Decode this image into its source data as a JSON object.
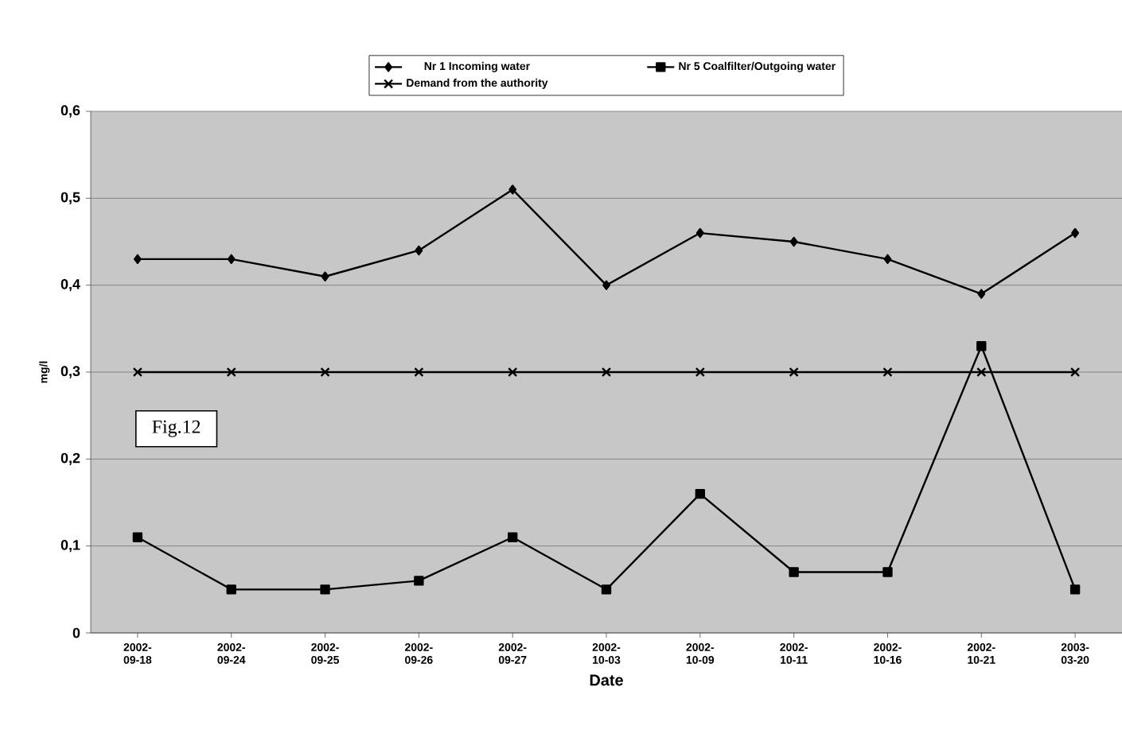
{
  "chart_data": {
    "type": "line",
    "xlabel": "Date",
    "ylabel": "mg/l",
    "categories": [
      "2002-09-18",
      "2002-09-24",
      "2002-09-25",
      "2002-09-26",
      "2002-09-27",
      "2002-10-03",
      "2002-10-09",
      "2002-10-11",
      "2002-10-16",
      "2002-10-21",
      "2003-03-20"
    ],
    "series": [
      {
        "name": "Nr 1  Incoming water",
        "color": "#000000",
        "marker": "diamond",
        "values": [
          0.43,
          0.43,
          0.41,
          0.44,
          0.51,
          0.4,
          0.46,
          0.45,
          0.43,
          0.39,
          0.46
        ]
      },
      {
        "name": "Nr 5  Coalfilter/Outgoing water",
        "color": "#000000",
        "marker": "square",
        "values": [
          0.11,
          0.05,
          0.05,
          0.06,
          0.11,
          0.05,
          0.16,
          0.07,
          0.07,
          0.33,
          0.05
        ]
      },
      {
        "name": "Demand from the authority",
        "color": "#000000",
        "marker": "cross",
        "values": [
          0.3,
          0.3,
          0.3,
          0.3,
          0.3,
          0.3,
          0.3,
          0.3,
          0.3,
          0.3,
          0.3
        ]
      }
    ],
    "ylim": [
      0,
      0.6
    ],
    "yticks": [
      {
        "value": 0,
        "label": "0"
      },
      {
        "value": 0.1,
        "label": "0,1"
      },
      {
        "value": 0.2,
        "label": "0,2"
      },
      {
        "value": 0.3,
        "label": "0,3"
      },
      {
        "value": 0.4,
        "label": "0,4"
      },
      {
        "value": 0.5,
        "label": "0,5"
      },
      {
        "value": 0.6,
        "label": "0,6"
      }
    ],
    "grid": "y",
    "legend": "top",
    "line_style": "solid",
    "annotations": [
      "Fig.12"
    ]
  }
}
